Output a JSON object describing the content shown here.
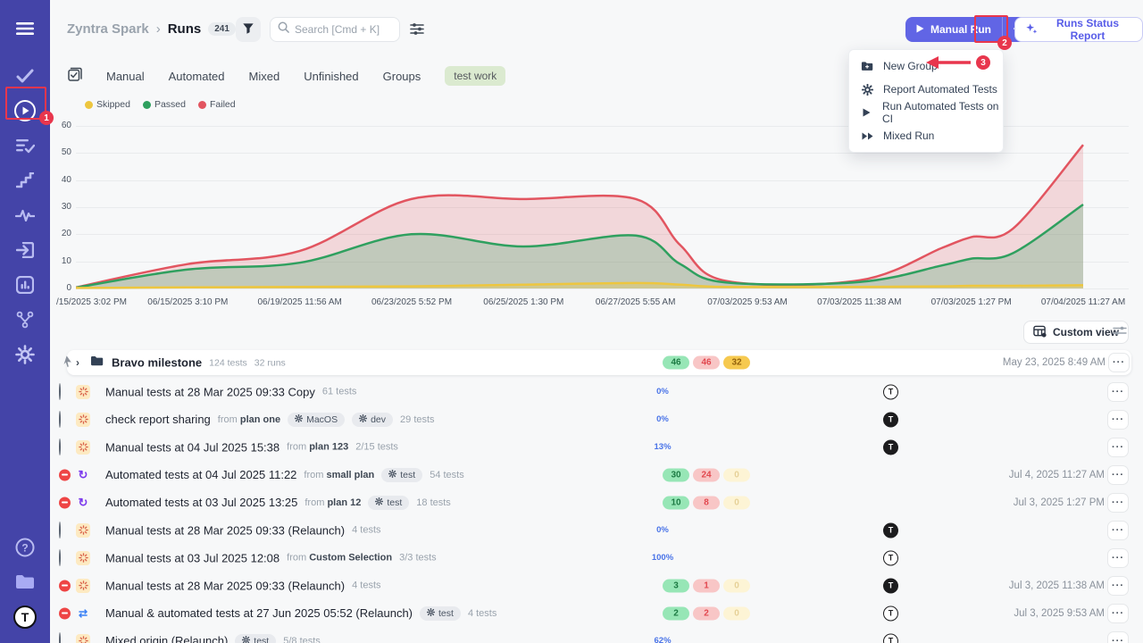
{
  "sidebar": {
    "avatar_letter": "T"
  },
  "header": {
    "breadcrumb": {
      "project": "Zyntra Spark",
      "separator": "›",
      "page": "Runs",
      "count": "241"
    },
    "search_placeholder": "Search [Cmd + K]",
    "manual_run_label": "Manual Run",
    "runs_status_report_label": "Runs Status Report"
  },
  "tabs": [
    "Manual",
    "Automated",
    "Mixed",
    "Unfinished",
    "Groups"
  ],
  "active_tag": "test work",
  "legend": [
    {
      "label": "Skipped",
      "color": "#edc63f"
    },
    {
      "label": "Passed",
      "color": "#2fa05f"
    },
    {
      "label": "Failed",
      "color": "#e25560"
    }
  ],
  "dropdown": {
    "items": [
      {
        "icon": "folder-plus-icon",
        "label": "New Group"
      },
      {
        "icon": "gear-icon",
        "label": "Report Automated Tests"
      },
      {
        "icon": "play-icon",
        "label": "Run Automated Tests on CI"
      },
      {
        "icon": "fast-forward-icon",
        "label": "Mixed Run"
      }
    ]
  },
  "annotations": {
    "step1": "1",
    "step2": "2",
    "step3": "3"
  },
  "toolbar": {
    "custom_view_label": "Custom view"
  },
  "chart_data": {
    "type": "area",
    "stacked": true,
    "title": "",
    "xlabel": "",
    "ylabel": "",
    "ylim": [
      0,
      60
    ],
    "y_ticks": [
      0,
      10,
      20,
      30,
      40,
      50,
      60
    ],
    "grid": true,
    "legend_position": "top-left",
    "x_labels": [
      "/15/2025 3:02 PM",
      "06/15/2025 3:10 PM",
      "06/19/2025 11:56 AM",
      "06/23/2025 5:52 PM",
      "06/25/2025 1:30 PM",
      "06/27/2025 5:55 AM",
      "07/03/2025 9:53 AM",
      "07/03/2025 11:38 AM",
      "07/03/2025 1:27 PM",
      "07/04/2025 11:27 AM"
    ],
    "series": [
      {
        "name": "Skipped",
        "color": "#edc63f",
        "values": [
          0,
          0.4,
          0.6,
          0.8,
          1.4,
          2,
          0.6,
          0.6,
          1,
          1.2
        ]
      },
      {
        "name": "Passed",
        "color": "#2fa05f",
        "values": [
          0,
          6.6,
          8.9,
          19.2,
          14.1,
          17.5,
          1.6,
          1.8,
          10,
          29.8
        ]
      },
      {
        "name": "Failed",
        "color": "#e25560",
        "values": [
          0,
          2,
          4.3,
          13,
          17.5,
          13.5,
          0.6,
          0.6,
          8,
          22
        ]
      }
    ],
    "render_points": {
      "x": [
        0,
        0.111,
        0.222,
        0.333,
        0.444,
        0.556,
        0.6,
        0.645,
        0.778,
        0.86,
        0.889,
        0.93,
        1
      ],
      "skipped_top": [
        0.2,
        0.4,
        0.6,
        0.8,
        1.4,
        2.0,
        1.4,
        0.6,
        0.6,
        0.8,
        1.0,
        1.0,
        1.2
      ],
      "passed_top": [
        0.3,
        7,
        9.5,
        20,
        15.5,
        19.5,
        9,
        2.2,
        2.4,
        8.5,
        11,
        13,
        31
      ],
      "failed_top": [
        0.4,
        9,
        13.8,
        33,
        33,
        33,
        16,
        2.8,
        3.0,
        15,
        19,
        22,
        53
      ]
    }
  },
  "table": {
    "rows": [
      {
        "kind": "group",
        "title": "Bravo milestone",
        "meta_tests": "124 tests",
        "meta_runs": "32 runs",
        "stat": {
          "kind": "pills",
          "green": "46",
          "red": "46",
          "yellow": "32",
          "yellow_muted": false
        },
        "date": "May 23, 2025 8:49 AM"
      },
      {
        "kind": "run",
        "status": "in-progress",
        "type": "manual",
        "title": "Manual tests at 28 Mar 2025 09:33 Copy",
        "tests": "61 tests",
        "stat": {
          "kind": "progress",
          "pct": 0,
          "label": "0%"
        },
        "avatar": "outline"
      },
      {
        "kind": "run",
        "status": "in-progress",
        "type": "manual",
        "title": "check report sharing",
        "from_label": "from",
        "from": "plan one",
        "env": [
          "MacOS",
          "dev"
        ],
        "tests": "29 tests",
        "stat": {
          "kind": "progress",
          "pct": 0,
          "label": "0%"
        },
        "avatar": "solid"
      },
      {
        "kind": "run",
        "status": "in-progress",
        "type": "manual",
        "title": "Manual tests at 04 Jul 2025 15:38",
        "from_label": "from",
        "from": "plan 123",
        "tests": "2/15 tests",
        "stat": {
          "kind": "progress",
          "pct": 13,
          "label": "13%"
        },
        "avatar": "solid"
      },
      {
        "kind": "run",
        "status": "stopped",
        "type": "automated",
        "title": "Automated tests at 04 Jul 2025 11:22",
        "from_label": "from",
        "from": "small plan",
        "env": [
          "test"
        ],
        "tests": "54 tests",
        "stat": {
          "kind": "pills",
          "green": "30",
          "red": "24",
          "yellow": "0",
          "yellow_muted": true
        },
        "date": "Jul 4, 2025 11:27 AM"
      },
      {
        "kind": "run",
        "status": "stopped",
        "type": "automated",
        "title": "Automated tests at 03 Jul 2025 13:25",
        "from_label": "from",
        "from": "plan 12",
        "env": [
          "test"
        ],
        "tests": "18 tests",
        "stat": {
          "kind": "pills",
          "green": "10",
          "red": "8",
          "yellow": "0",
          "yellow_muted": true
        },
        "date": "Jul 3, 2025 1:27 PM"
      },
      {
        "kind": "run",
        "status": "in-progress",
        "type": "manual",
        "title": "Manual tests at 28 Mar 2025 09:33 (Relaunch)",
        "tests": "4 tests",
        "stat": {
          "kind": "progress",
          "pct": 0,
          "label": "0%"
        },
        "avatar": "solid"
      },
      {
        "kind": "run",
        "status": "in-progress",
        "type": "manual",
        "title": "Manual tests at 03 Jul 2025 12:08",
        "from_label": "from",
        "from": "Custom Selection",
        "tests": "3/3 tests",
        "stat": {
          "kind": "progress",
          "pct": 100,
          "label": "100%"
        },
        "avatar": "outline"
      },
      {
        "kind": "run",
        "status": "stopped",
        "type": "manual",
        "title": "Manual tests at 28 Mar 2025 09:33 (Relaunch)",
        "tests": "4 tests",
        "stat": {
          "kind": "pills",
          "green": "3",
          "red": "1",
          "yellow": "0",
          "yellow_muted": true
        },
        "avatar": "solid",
        "date": "Jul 3, 2025 11:38 AM"
      },
      {
        "kind": "run",
        "status": "stopped",
        "type": "mixed",
        "title": "Manual & automated tests at 27 Jun 2025 05:52 (Relaunch)",
        "env": [
          "test"
        ],
        "tests": "4 tests",
        "stat": {
          "kind": "pills",
          "green": "2",
          "red": "2",
          "yellow": "0",
          "yellow_muted": true
        },
        "avatar": "outline",
        "date": "Jul 3, 2025 9:53 AM"
      },
      {
        "kind": "run",
        "status": "in-progress",
        "type": "manual",
        "title": "Mixed origin (Relaunch)",
        "env": [
          "test"
        ],
        "tests": "5/8 tests",
        "stat": {
          "kind": "progress",
          "pct": 62,
          "label": "62%"
        },
        "avatar": "outline"
      }
    ]
  }
}
